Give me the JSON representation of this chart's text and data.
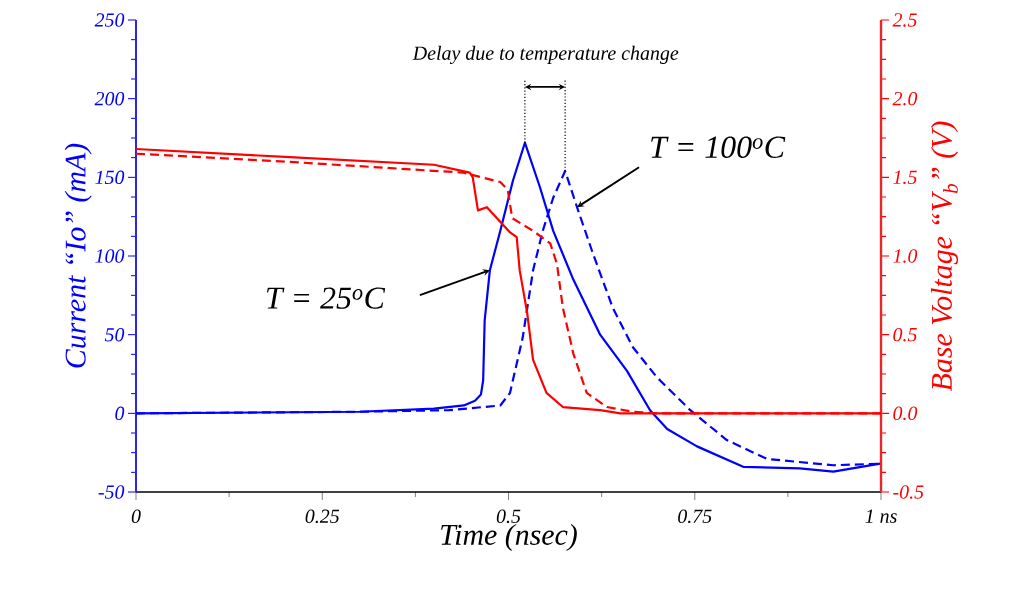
{
  "chart_data": {
    "type": "line",
    "xlabel": "Time (nsec)",
    "ylabel": "Current “Io” (mA)",
    "y2label": "Base Voltage “V$_{b}$” (V)",
    "xlim": [
      0,
      1
    ],
    "ylim": [
      -50,
      250
    ],
    "y2lim": [
      -0.5,
      2.5
    ],
    "xticks": [
      0,
      0.25,
      0.5,
      0.75,
      {
        "value": 1,
        "label": "1 ns"
      }
    ],
    "yticks": [
      -50,
      0,
      50,
      100,
      150,
      200,
      250
    ],
    "y2ticks": [
      -0.5,
      {
        "value": 0,
        "label": "0.0"
      },
      0.5,
      {
        "value": 1,
        "label": "1.0"
      },
      1.5,
      {
        "value": 2,
        "label": "2.0"
      },
      2.5
    ],
    "series": [
      {
        "color": "#0000ff",
        "line_style": "solid",
        "x": [
          0,
          0.3,
          0.4,
          0.44,
          0.455,
          0.463,
          0.466,
          0.468,
          0.475,
          0.489,
          0.506,
          0.522,
          0.542,
          0.56,
          0.587,
          0.623,
          0.659,
          0.69,
          0.713,
          0.753,
          0.815,
          0.891,
          0.936,
          0.999
        ],
        "values": [
          0,
          1,
          3,
          5,
          8,
          12,
          21,
          59,
          91,
          116,
          148,
          172,
          144,
          116,
          85,
          50,
          27,
          2,
          -10,
          -21,
          -34,
          -35,
          -37,
          -32
        ]
      },
      {
        "color": "#0000ff",
        "line_style": "dashed",
        "x": [
          0,
          0.3,
          0.42,
          0.489,
          0.502,
          0.519,
          0.533,
          0.546,
          0.56,
          0.576,
          0.592,
          0.613,
          0.64,
          0.667,
          0.699,
          0.744,
          0.793,
          0.847,
          0.936,
          0.999
        ],
        "values": [
          0,
          1,
          2,
          5,
          13,
          48,
          91,
          116,
          137,
          154,
          131,
          102,
          67,
          42,
          23,
          2,
          -17,
          -29,
          -33,
          -32
        ]
      },
      {
        "color": "#ff0000",
        "line_style": "solid",
        "axis": "y2",
        "x": [
          0,
          0.2,
          0.4,
          0.448,
          0.452,
          0.459,
          0.471,
          0.502,
          0.511,
          0.515,
          0.525,
          0.533,
          0.551,
          0.573,
          0.623,
          0.65,
          1
        ],
        "values": [
          1.68,
          1.63,
          1.58,
          1.53,
          1.5,
          1.29,
          1.31,
          1.15,
          1.12,
          0.91,
          0.64,
          0.34,
          0.13,
          0.04,
          0.02,
          0,
          0
        ]
      },
      {
        "color": "#ff0000",
        "line_style": "dashed",
        "axis": "y2",
        "x": [
          0,
          0.2,
          0.439,
          0.489,
          0.499,
          0.505,
          0.533,
          0.556,
          0.565,
          0.573,
          0.587,
          0.605,
          0.632,
          0.667,
          0.7,
          1
        ],
        "values": [
          1.65,
          1.6,
          1.53,
          1.47,
          1.42,
          1.24,
          1.16,
          1.08,
          0.95,
          0.67,
          0.38,
          0.13,
          0.04,
          0.01,
          0,
          0
        ]
      }
    ],
    "ref_lines": [
      {
        "axis": "x",
        "value": 0.522,
        "line_style": "dotted",
        "color": "#000000"
      },
      {
        "axis": "x",
        "value": 0.576,
        "line_style": "dotted",
        "color": "#000000"
      }
    ],
    "annotations": [
      "Delay due to temperature change",
      {
        "text": "T = 25$^{o}$C",
        "x": 0.475,
        "y": 91
      },
      {
        "text": "T = 100$^{o}$C",
        "x": 0.592,
        "y": 131
      }
    ]
  }
}
